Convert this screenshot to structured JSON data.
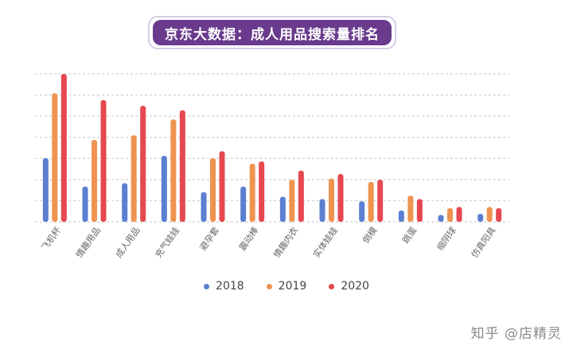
{
  "header": {
    "title": "京东大数据：成人用品搜索量排名"
  },
  "watermark": {
    "text": "知乎 @店精灵"
  },
  "chart_data": {
    "type": "bar",
    "title": "京东大数据：成人用品搜索量排名",
    "xlabel": "",
    "ylabel": "",
    "ylim": [
      0,
      13
    ],
    "grid": true,
    "legend_position": "bottom-center",
    "categories": [
      "飞机杯",
      "情趣用品",
      "成人用品",
      "充气娃娃",
      "避孕套",
      "震动棒",
      "情趣内衣",
      "实体娃娃",
      "倒模",
      "跳蛋",
      "缩阴球",
      "仿真阳具"
    ],
    "series": [
      {
        "name": "2018",
        "color": "#5b7fd1",
        "values": [
          5.6,
          3.1,
          3.4,
          5.8,
          2.6,
          3.1,
          2.2,
          2.0,
          1.8,
          1.0,
          0.6,
          0.7
        ]
      },
      {
        "name": "2019",
        "color": "#ee9450",
        "values": [
          11.3,
          7.2,
          7.6,
          9.0,
          5.6,
          5.1,
          3.7,
          3.8,
          3.5,
          2.3,
          1.2,
          1.3
        ]
      },
      {
        "name": "2020",
        "color": "#e5484f",
        "values": [
          13.0,
          10.7,
          10.2,
          9.8,
          6.2,
          5.3,
          4.5,
          4.2,
          3.7,
          2.0,
          1.3,
          1.2
        ]
      }
    ]
  }
}
